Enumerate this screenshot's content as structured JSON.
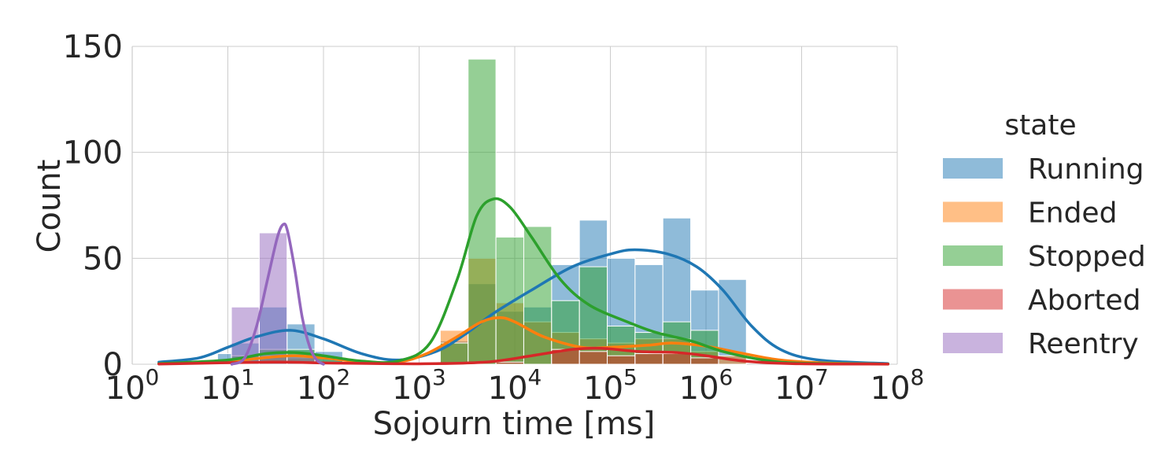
{
  "chart_data": {
    "type": "histogram",
    "x_scale": "log",
    "xlabel": "Sojourn time [ms]",
    "ylabel": "Count",
    "xlim": [
      1,
      100000000
    ],
    "ylim": [
      0,
      150
    ],
    "x_ticks": [
      {
        "value": 1,
        "base": "10",
        "exp": "0"
      },
      {
        "value": 10,
        "base": "10",
        "exp": "1"
      },
      {
        "value": 100,
        "base": "10",
        "exp": "2"
      },
      {
        "value": 1000,
        "base": "10",
        "exp": "3"
      },
      {
        "value": 10000,
        "base": "10",
        "exp": "4"
      },
      {
        "value": 100000,
        "base": "10",
        "exp": "5"
      },
      {
        "value": 1000000,
        "base": "10",
        "exp": "6"
      },
      {
        "value": 10000000,
        "base": "10",
        "exp": "7"
      },
      {
        "value": 100000000,
        "base": "10",
        "exp": "8"
      }
    ],
    "y_ticks": [
      "0",
      "50",
      "100",
      "150"
    ],
    "grid": true,
    "legend_title": "state",
    "legend_position": "right",
    "bin_width_decades": 0.1455,
    "series": [
      {
        "name": "Running",
        "color": "#1f77b4",
        "bins": [
          {
            "x0": 5.6,
            "x1": 7.8,
            "count": 2
          },
          {
            "x0": 7.8,
            "x1": 10.9,
            "count": 5
          },
          {
            "x0": 10.9,
            "x1": 21.3,
            "count": 10
          },
          {
            "x0": 21.3,
            "x1": 41.6,
            "count": 27
          },
          {
            "x0": 41.6,
            "x1": 81.3,
            "count": 19
          },
          {
            "x0": 81.3,
            "x1": 158.9,
            "count": 6
          },
          {
            "x0": 1665,
            "x1": 3254,
            "count": 11
          },
          {
            "x0": 3254,
            "x1": 6359,
            "count": 38
          },
          {
            "x0": 6359,
            "x1": 12426,
            "count": 25
          },
          {
            "x0": 12426,
            "x1": 24283,
            "count": 27
          },
          {
            "x0": 24283,
            "x1": 47453,
            "count": 47
          },
          {
            "x0": 47453,
            "x1": 92730,
            "count": 68
          },
          {
            "x0": 92730,
            "x1": 181208,
            "count": 50
          },
          {
            "x0": 181208,
            "x1": 354109,
            "count": 47
          },
          {
            "x0": 354109,
            "x1": 691987,
            "count": 69
          },
          {
            "x0": 691987,
            "x1": 1352252,
            "count": 35
          },
          {
            "x0": 1352252,
            "x1": 2642513,
            "count": 40
          }
        ],
        "kde": [
          [
            1.9,
            1
          ],
          [
            5,
            3
          ],
          [
            10,
            8
          ],
          [
            20,
            13
          ],
          [
            45,
            16
          ],
          [
            100,
            12
          ],
          [
            250,
            5
          ],
          [
            600,
            2
          ],
          [
            1500,
            6
          ],
          [
            3000,
            14
          ],
          [
            6000,
            24
          ],
          [
            15000,
            35
          ],
          [
            40000,
            46
          ],
          [
            100000,
            52
          ],
          [
            180000,
            54
          ],
          [
            400000,
            52
          ],
          [
            800000,
            46
          ],
          [
            1500000,
            35
          ],
          [
            3000000,
            18
          ],
          [
            6000000,
            7
          ],
          [
            15000000,
            2
          ],
          [
            80000000,
            0.3
          ]
        ]
      },
      {
        "name": "Ended",
        "color": "#ff7f0e",
        "bins": [
          {
            "x0": 21.3,
            "x1": 41.6,
            "count": 4
          },
          {
            "x0": 41.6,
            "x1": 81.3,
            "count": 3
          },
          {
            "x0": 1665,
            "x1": 3254,
            "count": 16
          },
          {
            "x0": 3254,
            "x1": 6359,
            "count": 50
          },
          {
            "x0": 6359,
            "x1": 12426,
            "count": 29
          },
          {
            "x0": 12426,
            "x1": 24283,
            "count": 20
          },
          {
            "x0": 24283,
            "x1": 47453,
            "count": 15
          },
          {
            "x0": 47453,
            "x1": 92730,
            "count": 12
          },
          {
            "x0": 92730,
            "x1": 181208,
            "count": 10
          },
          {
            "x0": 181208,
            "x1": 354109,
            "count": 12
          },
          {
            "x0": 354109,
            "x1": 691987,
            "count": 12
          },
          {
            "x0": 691987,
            "x1": 1352252,
            "count": 6
          },
          {
            "x0": 1352252,
            "x1": 2642513,
            "count": 4
          }
        ],
        "kde": [
          [
            1.9,
            0.3
          ],
          [
            10,
            1.5
          ],
          [
            30,
            3.5
          ],
          [
            50,
            4
          ],
          [
            100,
            3
          ],
          [
            250,
            1.2
          ],
          [
            600,
            1
          ],
          [
            1200,
            5
          ],
          [
            2500,
            13
          ],
          [
            4500,
            20
          ],
          [
            7000,
            22
          ],
          [
            10000,
            20
          ],
          [
            20000,
            13
          ],
          [
            50000,
            8
          ],
          [
            100000,
            8
          ],
          [
            250000,
            9
          ],
          [
            450000,
            10
          ],
          [
            1000000,
            8.5
          ],
          [
            2500000,
            5
          ],
          [
            6000000,
            2
          ],
          [
            20000000,
            0.5
          ],
          [
            80000000,
            0.1
          ]
        ]
      },
      {
        "name": "Stopped",
        "color": "#2ca02c",
        "bins": [
          {
            "x0": 7.8,
            "x1": 10.9,
            "count": 1
          },
          {
            "x0": 10.9,
            "x1": 21.3,
            "count": 4
          },
          {
            "x0": 21.3,
            "x1": 41.6,
            "count": 7
          },
          {
            "x0": 41.6,
            "x1": 81.3,
            "count": 7
          },
          {
            "x0": 81.3,
            "x1": 158.9,
            "count": 3
          },
          {
            "x0": 1665,
            "x1": 3254,
            "count": 10
          },
          {
            "x0": 3254,
            "x1": 6359,
            "count": 144
          },
          {
            "x0": 6359,
            "x1": 12426,
            "count": 60
          },
          {
            "x0": 12426,
            "x1": 24283,
            "count": 65
          },
          {
            "x0": 24283,
            "x1": 47453,
            "count": 30
          },
          {
            "x0": 47453,
            "x1": 92730,
            "count": 46
          },
          {
            "x0": 92730,
            "x1": 181208,
            "count": 18
          },
          {
            "x0": 181208,
            "x1": 354109,
            "count": 15
          },
          {
            "x0": 354109,
            "x1": 691987,
            "count": 20
          },
          {
            "x0": 691987,
            "x1": 1352252,
            "count": 16
          }
        ],
        "kde": [
          [
            1.9,
            0.3
          ],
          [
            10,
            2
          ],
          [
            25,
            5
          ],
          [
            50,
            5.5
          ],
          [
            100,
            4
          ],
          [
            250,
            1.5
          ],
          [
            600,
            1.5
          ],
          [
            1300,
            10
          ],
          [
            2500,
            40
          ],
          [
            4000,
            70
          ],
          [
            6000,
            78
          ],
          [
            9000,
            74
          ],
          [
            15000,
            60
          ],
          [
            30000,
            40
          ],
          [
            60000,
            28
          ],
          [
            150000,
            20
          ],
          [
            300000,
            15
          ],
          [
            700000,
            11
          ],
          [
            1500000,
            6
          ],
          [
            4000000,
            2
          ],
          [
            10000000,
            0.5
          ],
          [
            80000000,
            0.1
          ]
        ]
      },
      {
        "name": "Aborted",
        "color": "#d62728",
        "bins": [
          {
            "x0": 21.3,
            "x1": 41.6,
            "count": 1
          },
          {
            "x0": 41.6,
            "x1": 81.3,
            "count": 1
          },
          {
            "x0": 6359,
            "x1": 12426,
            "count": 1
          },
          {
            "x0": 24283,
            "x1": 47453,
            "count": 7
          },
          {
            "x0": 47453,
            "x1": 92730,
            "count": 6
          },
          {
            "x0": 92730,
            "x1": 181208,
            "count": 4
          },
          {
            "x0": 181208,
            "x1": 354109,
            "count": 5
          },
          {
            "x0": 354109,
            "x1": 691987,
            "count": 5
          },
          {
            "x0": 691987,
            "x1": 1352252,
            "count": 3
          }
        ],
        "kde": [
          [
            1.9,
            0.1
          ],
          [
            30,
            1
          ],
          [
            100,
            0.6
          ],
          [
            1000,
            0.2
          ],
          [
            5000,
            1
          ],
          [
            15000,
            4
          ],
          [
            40000,
            7
          ],
          [
            80000,
            7.5
          ],
          [
            200000,
            6
          ],
          [
            500000,
            5.5
          ],
          [
            1000000,
            4
          ],
          [
            2500000,
            1.5
          ],
          [
            8000000,
            0.3
          ],
          [
            80000000,
            0.05
          ]
        ]
      },
      {
        "name": "Reentry",
        "color": "#9467bd",
        "bins": [
          {
            "x0": 10.9,
            "x1": 21.3,
            "count": 27
          },
          {
            "x0": 21.3,
            "x1": 41.6,
            "count": 62
          },
          {
            "x0": 41.6,
            "x1": 81.3,
            "count": 4
          }
        ],
        "kde": [
          [
            11,
            0
          ],
          [
            15,
            3
          ],
          [
            20,
            18
          ],
          [
            26,
            40
          ],
          [
            33,
            60
          ],
          [
            38,
            66
          ],
          [
            42,
            63
          ],
          [
            50,
            45
          ],
          [
            60,
            22
          ],
          [
            72,
            8
          ],
          [
            85,
            2
          ],
          [
            100,
            0
          ]
        ]
      }
    ]
  }
}
